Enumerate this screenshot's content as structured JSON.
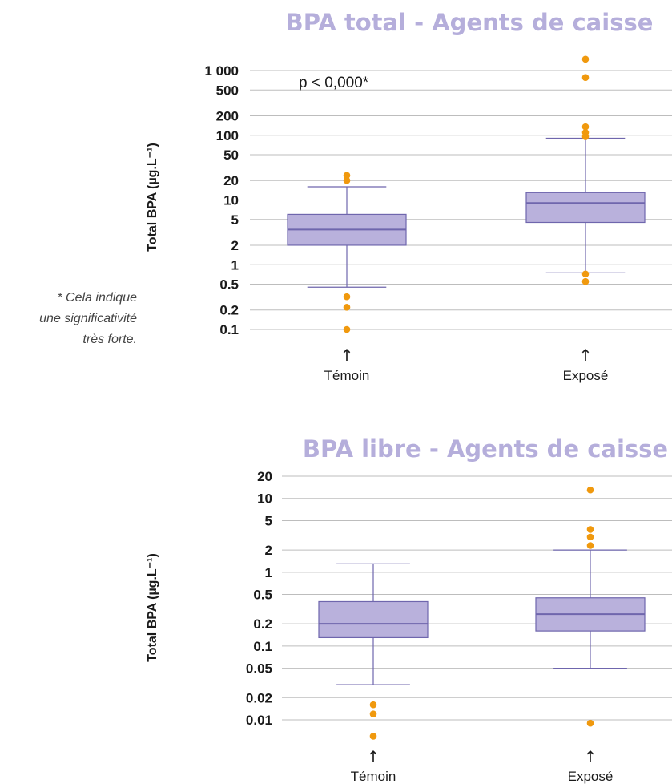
{
  "colors": {
    "title": "#b5aedb",
    "box_fill": "#b9b1dc",
    "box_stroke": "#6f66ad",
    "outlier": "#f0990e",
    "grid": "#bdbdbd"
  },
  "footnote": [
    "* Cela indique",
    "une significativité",
    "très forte."
  ],
  "arrow_glyph": "↑",
  "chart_data": [
    {
      "type": "box",
      "title": "BPA total - Agents de caisse",
      "ylabel": "Total BPA (µg.L⁻¹)",
      "annotation": "p < 0,000*",
      "yscale": "log",
      "ylim": [
        0.08,
        2000
      ],
      "yticks": [
        0.1,
        0.2,
        0.5,
        1,
        2,
        5,
        10,
        20,
        50,
        100,
        200,
        500,
        1000
      ],
      "ytick_labels": [
        "0.1",
        "0.2",
        "0.5",
        "1",
        "2",
        "5",
        "10",
        "20",
        "50",
        "100",
        "200",
        "500",
        "1 000"
      ],
      "grid": true,
      "categories": [
        "Témoin",
        "Exposé"
      ],
      "boxes": [
        {
          "min": 0.45,
          "q1": 2.0,
          "median": 3.5,
          "q3": 6.0,
          "max": 16,
          "outliers": [
            0.1,
            0.22,
            0.32,
            20,
            24
          ]
        },
        {
          "min": 0.75,
          "q1": 4.5,
          "median": 9.0,
          "q3": 13,
          "max": 90,
          "outliers": [
            0.55,
            0.72,
            95,
            110,
            135,
            780,
            1500
          ]
        }
      ]
    },
    {
      "type": "box",
      "title": "BPA libre - Agents de caisse",
      "ylabel": "Total BPA (µg.L⁻¹)",
      "yscale": "log",
      "ylim": [
        0.005,
        25
      ],
      "yticks": [
        0.01,
        0.02,
        0.05,
        0.1,
        0.2,
        0.5,
        1,
        2,
        5,
        10,
        20
      ],
      "ytick_labels": [
        "0.01",
        "0.02",
        "0.05",
        "0.1",
        "0.2",
        "0.5",
        "1",
        "2",
        "5",
        "10",
        "20"
      ],
      "grid": true,
      "categories": [
        "Témoin",
        "Exposé"
      ],
      "boxes": [
        {
          "min": 0.03,
          "q1": 0.13,
          "median": 0.2,
          "q3": 0.4,
          "max": 1.3,
          "outliers": [
            0.006,
            0.012,
            0.016
          ]
        },
        {
          "min": 0.05,
          "q1": 0.16,
          "median": 0.27,
          "q3": 0.45,
          "max": 2.0,
          "outliers": [
            0.009,
            2.3,
            3.0,
            3.8,
            13
          ]
        }
      ]
    }
  ]
}
